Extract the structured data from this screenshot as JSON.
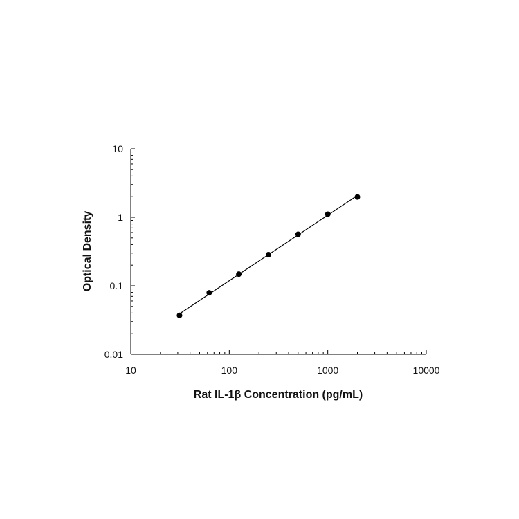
{
  "chart_data": {
    "type": "scatter",
    "title": "",
    "xlabel": "Rat IL-1β Concentration (pg/mL)",
    "ylabel": "Optical Density",
    "x_scale": "log",
    "y_scale": "log",
    "xlim": [
      10,
      10000
    ],
    "ylim": [
      0.01,
      10
    ],
    "x_ticks": [
      10,
      100,
      1000,
      10000
    ],
    "y_ticks": [
      0.01,
      0.1,
      1,
      10
    ],
    "x_tick_labels": [
      "10",
      "100",
      "1000",
      "10000"
    ],
    "y_tick_labels": [
      "0.01",
      "0.1",
      "1",
      "10"
    ],
    "grid": false,
    "legend": "none",
    "series": [
      {
        "x": [
          31.25,
          62.5,
          125,
          250,
          500,
          1000,
          2000
        ],
        "y": [
          0.037,
          0.079,
          0.148,
          0.285,
          0.565,
          1.11,
          1.98
        ],
        "fit_line": true,
        "color": "#000000"
      }
    ]
  }
}
